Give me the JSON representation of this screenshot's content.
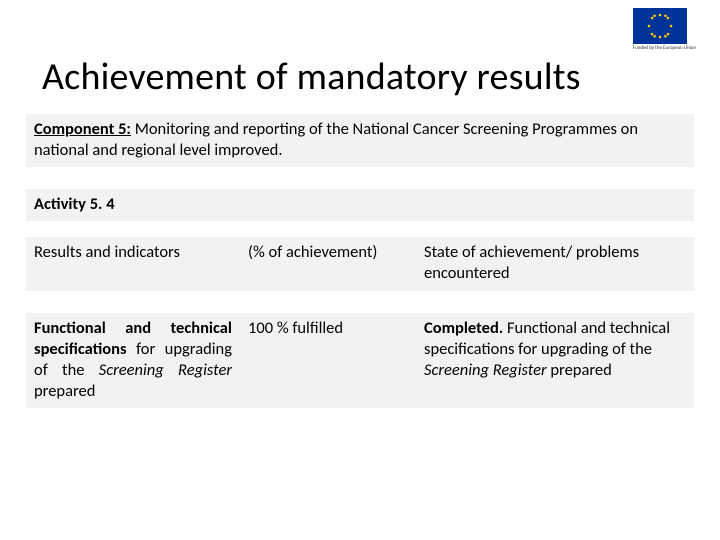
{
  "flag": {
    "bg": "#003399",
    "star": "#ffcc00",
    "caption": "Funded by the European Union"
  },
  "title": "Achievement of mandatory results",
  "table": {
    "row1_prefix_bold_underline": "Component 5:",
    "row1_rest": " Monitoring and reporting of the National Cancer Screening Programmes on national and regional level improved.",
    "row2": "Activity 5. 4",
    "row3_left": "Results and indicators",
    "row3_mid": "(% of achievement)",
    "row3_right": "State of achievement/ problems encountered",
    "row4_left_html": "<span class=\"bold\">Functional and technical specifications</span> for upgrading of the <span class=\"italic\">Screening Register</span> prepared",
    "row4_mid": "100 %  fulfilled",
    "row4_right_html": "<span class=\"bold\">Completed.</span> Functional and technical specifications for upgrading of the <span class=\"italic\">Screening Register</span> prepared"
  },
  "colors": {
    "band": "#f2f2f2",
    "text": "#000000",
    "bg": "#ffffff"
  }
}
